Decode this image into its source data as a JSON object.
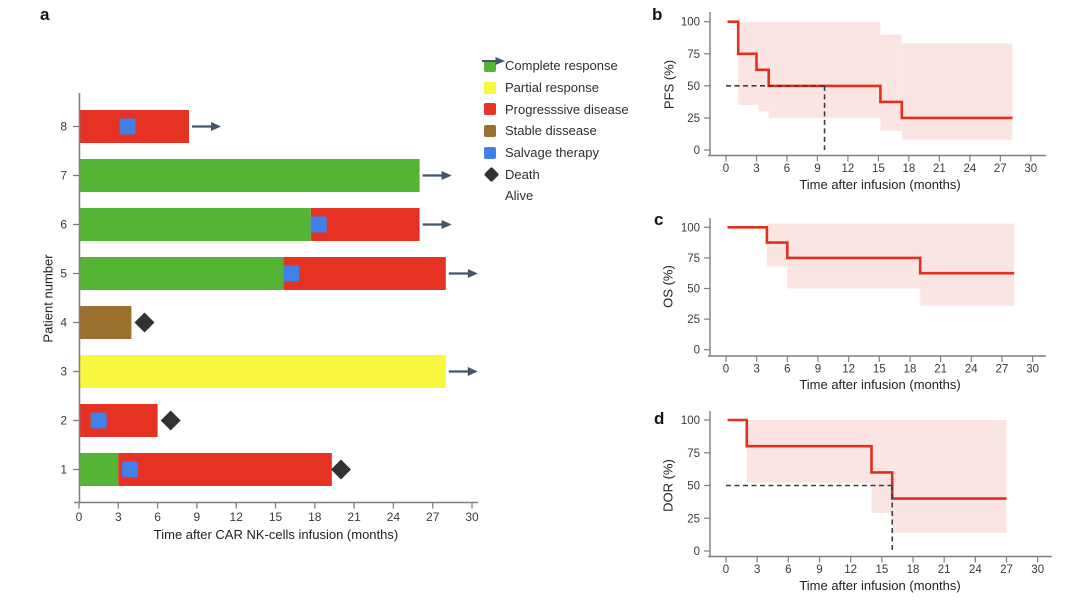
{
  "panels": {
    "a": {
      "letter": "a"
    },
    "b": {
      "letter": "b"
    },
    "c": {
      "letter": "c"
    },
    "d": {
      "letter": "d"
    }
  },
  "colors": {
    "complete_response": "#54b434",
    "partial_response": "#f8f73d",
    "progressive_disease": "#e53222",
    "stable_disease": "#9b6f2c",
    "salvage_therapy": "#4080e8",
    "death": "#333333",
    "alive": "#44546a",
    "km_line": "#e0301e",
    "ci_fill": "#fbe5e3",
    "dashed": "#3d3d3d",
    "axis": "#7f7f7f",
    "text": "#333333"
  },
  "legend": {
    "items": [
      {
        "key": "complete_response",
        "label": "Complete response"
      },
      {
        "key": "partial_response",
        "label": "Partial response"
      },
      {
        "key": "progressive_disease",
        "label": "Progresssive disease"
      },
      {
        "key": "stable_disease",
        "label": "Stable dissease"
      },
      {
        "key": "salvage_therapy",
        "label": "Salvage therapy"
      },
      {
        "key": "death",
        "label": "Death"
      },
      {
        "key": "alive",
        "label": "Alive"
      }
    ]
  },
  "chart_data": [
    {
      "id": "a",
      "type": "bar",
      "variant": "swimmer-plot",
      "xlabel": "Time after CAR NK-cells infusion (months)",
      "ylabel": "Patient number",
      "xlim": [
        0,
        30
      ],
      "xticks": [
        0,
        3,
        6,
        9,
        12,
        15,
        18,
        21,
        24,
        27,
        30
      ],
      "patients": [
        {
          "number": 1,
          "segments": [
            {
              "response": "complete_response",
              "start": 0,
              "end": 3
            },
            {
              "response": "progressive_disease",
              "start": 3,
              "end": 19.3
            }
          ],
          "salvage_therapy_at": 3.9,
          "outcome": "death",
          "event_time": 20
        },
        {
          "number": 2,
          "segments": [
            {
              "response": "progressive_disease",
              "start": 0,
              "end": 6
            }
          ],
          "salvage_therapy_at": 1.5,
          "outcome": "death",
          "event_time": 7
        },
        {
          "number": 3,
          "segments": [
            {
              "response": "partial_response",
              "start": 0,
              "end": 28
            }
          ],
          "salvage_therapy_at": null,
          "outcome": "alive",
          "event_time": null
        },
        {
          "number": 4,
          "segments": [
            {
              "response": "stable_disease",
              "start": 0,
              "end": 4
            }
          ],
          "salvage_therapy_at": null,
          "outcome": "death",
          "event_time": 5
        },
        {
          "number": 5,
          "segments": [
            {
              "response": "complete_response",
              "start": 0,
              "end": 15.6
            },
            {
              "response": "progressive_disease",
              "start": 15.6,
              "end": 28
            }
          ],
          "salvage_therapy_at": 16.2,
          "outcome": "alive",
          "event_time": null
        },
        {
          "number": 6,
          "segments": [
            {
              "response": "complete_response",
              "start": 0,
              "end": 17.7
            },
            {
              "response": "progressive_disease",
              "start": 17.7,
              "end": 26
            }
          ],
          "salvage_therapy_at": 18.3,
          "outcome": "alive",
          "event_time": null
        },
        {
          "number": 7,
          "segments": [
            {
              "response": "complete_response",
              "start": 0,
              "end": 26
            }
          ],
          "salvage_therapy_at": null,
          "outcome": "alive",
          "event_time": null
        },
        {
          "number": 8,
          "segments": [
            {
              "response": "progressive_disease",
              "start": 0,
              "end": 8.4
            }
          ],
          "salvage_therapy_at": 3.7,
          "outcome": "alive",
          "event_time": null
        }
      ]
    },
    {
      "id": "b",
      "type": "line",
      "variant": "kaplan-meier",
      "ylabel": "PFS (%)",
      "xlabel": "Time after infusion (months)",
      "xlim": [
        0,
        30
      ],
      "ylim": [
        0,
        100
      ],
      "xticks": [
        0,
        3,
        6,
        9,
        12,
        15,
        18,
        21,
        24,
        27,
        30
      ],
      "yticks": [
        0,
        25,
        50,
        75,
        100
      ],
      "steps": [
        [
          0,
          100
        ],
        [
          1.2,
          75
        ],
        [
          3,
          62.5
        ],
        [
          4.2,
          50
        ],
        [
          15.2,
          37.5
        ],
        [
          17.3,
          25
        ]
      ],
      "end_time": 28.2,
      "ci": [
        [
          1.2,
          3.2,
          35,
          100
        ],
        [
          3.2,
          4.2,
          30,
          100
        ],
        [
          4.2,
          15.2,
          25,
          100
        ],
        [
          15.2,
          17.3,
          15,
          90
        ],
        [
          17.3,
          28.2,
          8,
          83
        ]
      ],
      "median_dashed": {
        "time": 9.7,
        "value": 50
      }
    },
    {
      "id": "c",
      "type": "line",
      "variant": "kaplan-meier",
      "ylabel": "OS (%)",
      "xlabel": "Time after infusion (months)",
      "xlim": [
        0,
        30
      ],
      "ylim": [
        0,
        100
      ],
      "xticks": [
        0,
        3,
        6,
        9,
        12,
        15,
        18,
        21,
        24,
        27,
        30
      ],
      "yticks": [
        0,
        25,
        50,
        75,
        100
      ],
      "steps": [
        [
          0,
          100
        ],
        [
          4,
          87.5
        ],
        [
          6,
          75
        ],
        [
          19,
          62.5
        ]
      ],
      "end_time": 28.2,
      "ci": [
        [
          4,
          6,
          68,
          103
        ],
        [
          6,
          19,
          50,
          103
        ],
        [
          19,
          28.2,
          36,
          103
        ]
      ],
      "median_dashed": null
    },
    {
      "id": "d",
      "type": "line",
      "variant": "kaplan-meier",
      "ylabel": "DOR (%)",
      "xlabel": "Time after infusion (months)",
      "xlim": [
        0,
        30
      ],
      "ylim": [
        0,
        100
      ],
      "xticks": [
        0,
        3,
        6,
        9,
        12,
        15,
        18,
        21,
        24,
        27,
        30
      ],
      "yticks": [
        0,
        25,
        50,
        75,
        100
      ],
      "steps": [
        [
          0,
          100
        ],
        [
          2,
          80
        ],
        [
          14,
          60
        ],
        [
          16,
          40
        ]
      ],
      "end_time": 27,
      "ci": [
        [
          2,
          14,
          52,
          100
        ],
        [
          14,
          16,
          29,
          100
        ],
        [
          16,
          27,
          14,
          100
        ]
      ],
      "median_dashed": {
        "time": 16,
        "value": 50
      }
    }
  ]
}
